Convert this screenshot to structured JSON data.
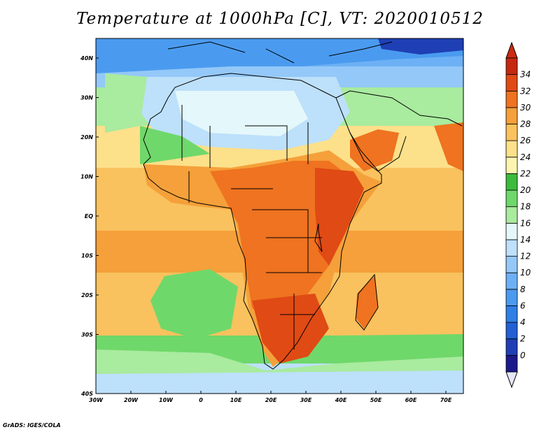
{
  "title": "Temperature at 1000hPa [C], VT: 2020010512",
  "credit": "GrADS: IGES/COLA",
  "map": {
    "lon_ticks": [
      "30W",
      "20W",
      "10W",
      "0",
      "10E",
      "20E",
      "30E",
      "40E",
      "50E",
      "60E",
      "70E"
    ],
    "lat_ticks": [
      "40N",
      "30N",
      "20N",
      "10N",
      "EQ",
      "10S",
      "20S",
      "30S",
      "40S"
    ]
  },
  "colorbar": {
    "labels": [
      "0",
      "2",
      "4",
      "6",
      "8",
      "10",
      "12",
      "14",
      "16",
      "18",
      "20",
      "22",
      "24",
      "26",
      "28",
      "30",
      "32",
      "34"
    ],
    "colors": [
      "#1a1a8c",
      "#1f3fb5",
      "#2360d4",
      "#2f7fe6",
      "#4a9bf0",
      "#6db0f5",
      "#94c8f8",
      "#bde0fb",
      "#e4f7fa",
      "#a9eb9f",
      "#6fd86a",
      "#3cbb3c",
      "#fbf5b0",
      "#fde08a",
      "#f9c25e",
      "#f5a03a",
      "#ef7320",
      "#e04a14",
      "#c62810"
    ],
    "under_color": "#e6e6fa",
    "over_color": "#cc2a10"
  }
}
